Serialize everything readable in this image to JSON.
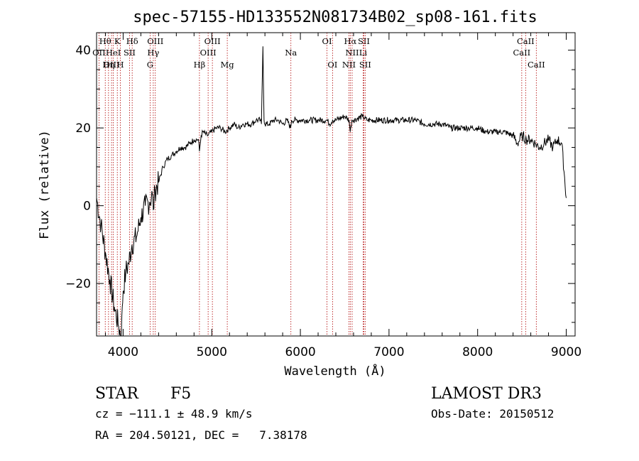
{
  "chart_data": {
    "type": "line",
    "title": "spec-57155-HD133552N081734B02_sp08-161.fits",
    "xlabel": "Wavelength (Å)",
    "ylabel": "Flux (relative)",
    "xlim": [
      3700,
      9100
    ],
    "ylim": [
      -33.5,
      44.5
    ],
    "x_ticks": [
      4000,
      5000,
      6000,
      7000,
      8000,
      9000
    ],
    "y_ticks": [
      -20,
      0,
      20,
      40
    ],
    "grid": false,
    "series": [
      {
        "x": [
          3700,
          3750,
          3800,
          3850,
          3900,
          3950,
          3980,
          3990,
          4000,
          4030,
          4060,
          4100,
          4150,
          4200,
          4250,
          4300,
          4330,
          4340,
          4360,
          4400,
          4450,
          4500,
          4550,
          4600,
          4650,
          4700,
          4750,
          4800,
          4850,
          4861,
          4880,
          4900,
          4950,
          5000,
          5050,
          5100,
          5150,
          5200,
          5250,
          5300,
          5350,
          5400,
          5450,
          5500,
          5550,
          5560,
          5577,
          5590,
          5600,
          5650,
          5700,
          5750,
          5800,
          5850,
          5890,
          5900,
          5950,
          6000,
          6100,
          6200,
          6300,
          6330,
          6363,
          6400,
          6500,
          6550,
          6563,
          6580,
          6600,
          6700,
          6750,
          6800,
          6900,
          7000,
          7100,
          7200,
          7300,
          7400,
          7500,
          7600,
          7700,
          7800,
          7900,
          8000,
          8100,
          8200,
          8300,
          8400,
          8450,
          8500,
          8550,
          8600,
          8650,
          8700,
          8750,
          8800,
          8850,
          8900,
          8950,
          9000
        ],
        "y": [
          2,
          -5,
          -12,
          -19,
          -26,
          -31,
          -34,
          -26,
          -22,
          -17,
          -15,
          -10,
          -8,
          -3,
          0,
          1,
          3,
          -1,
          4,
          6,
          10,
          12,
          13,
          14,
          15,
          15,
          16,
          17,
          17,
          14,
          18,
          19,
          18,
          19,
          20,
          20,
          19,
          20,
          21,
          20,
          21,
          21,
          21,
          22,
          22,
          21,
          41,
          22,
          21,
          21,
          22,
          22,
          21,
          22,
          20,
          22,
          22,
          22,
          22,
          22,
          22,
          21,
          22,
          22,
          23,
          22,
          19,
          22,
          22,
          23,
          22,
          22,
          22,
          22,
          22,
          22,
          22,
          21,
          21,
          21,
          20,
          20,
          20,
          20,
          19,
          19,
          19,
          18,
          16,
          18,
          17,
          17,
          16,
          15,
          16,
          17,
          15,
          17,
          16,
          2
        ]
      }
    ],
    "lines": [
      {
        "label": "Hθ",
        "x": 3798,
        "row": 1
      },
      {
        "label": "OII",
        "x": 3727,
        "row": 2
      },
      {
        "label": "OIII",
        "x": 3869,
        "row": 3
      },
      {
        "label": "K",
        "x": 3934,
        "row": 1
      },
      {
        "label": "HeI",
        "x": 3889,
        "row": 2
      },
      {
        "label": "Hη",
        "x": 3835,
        "row": 3
      },
      {
        "label": "H",
        "x": 3969,
        "row": 3
      },
      {
        "label": "Hδ",
        "x": 4102,
        "row": 1
      },
      {
        "label": "SII",
        "x": 4072,
        "row": 2
      },
      {
        "label": "OIII",
        "x": 4363,
        "row": 1
      },
      {
        "label": "Hγ",
        "x": 4340,
        "row": 2
      },
      {
        "label": "G",
        "x": 4304,
        "row": 3
      },
      {
        "label": "Hβ",
        "x": 4861,
        "row": 3
      },
      {
        "label": "OIII",
        "x": 5007,
        "row": 1
      },
      {
        "label": "OIII",
        "x": 4959,
        "row": 2
      },
      {
        "label": "Mg",
        "x": 5175,
        "row": 3
      },
      {
        "label": "Na",
        "x": 5893,
        "row": 2
      },
      {
        "label": "OI",
        "x": 6300,
        "row": 1
      },
      {
        "label": "OI",
        "x": 6363,
        "row": 3
      },
      {
        "label": "Hα",
        "x": 6563,
        "row": 1
      },
      {
        "label": "SII",
        "x": 6716,
        "row": 1
      },
      {
        "label": "NII",
        "x": 6584,
        "row": 2
      },
      {
        "label": "Li",
        "x": 6708,
        "row": 2
      },
      {
        "label": "NII",
        "x": 6548,
        "row": 3
      },
      {
        "label": "SII",
        "x": 6731,
        "row": 3
      },
      {
        "label": "CaII",
        "x": 8542,
        "row": 1
      },
      {
        "label": "CaII",
        "x": 8498,
        "row": 2
      },
      {
        "label": "CaII",
        "x": 8662,
        "row": 3
      }
    ]
  },
  "info": {
    "class": "STAR",
    "subclass": "F5",
    "survey": "LAMOST DR3",
    "cz": "cz = −111.1 ± 48.9 km/s",
    "obs_date": "Obs-Date: 20150512",
    "radec": "RA = 204.50121, DEC =   7.38178"
  }
}
